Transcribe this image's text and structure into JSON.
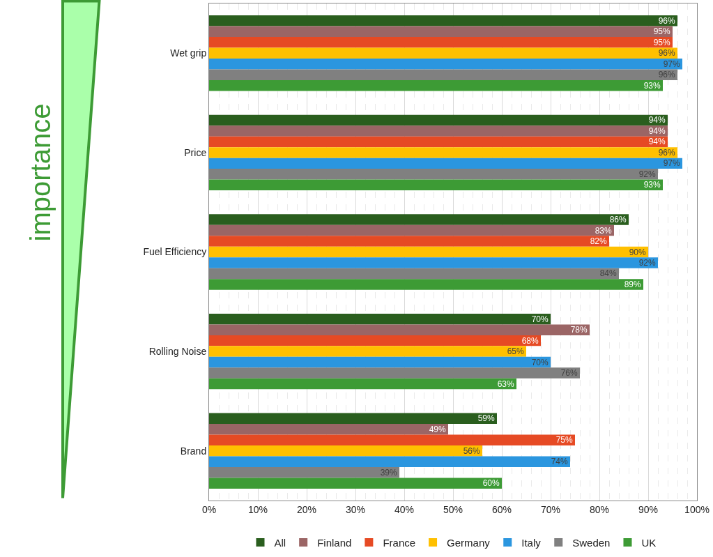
{
  "chart_data": {
    "type": "bar",
    "orientation": "horizontal",
    "categories": [
      "Wet grip",
      "Price",
      "Fuel Efficiency",
      "Rolling Noise",
      "Brand"
    ],
    "series": [
      {
        "name": "All",
        "color": "#2a5e1e",
        "values": [
          96,
          94,
          86,
          70,
          59
        ],
        "value_labels": [
          "96%",
          "94%",
          "86%",
          "70%",
          "59%"
        ]
      },
      {
        "name": "Finland",
        "color": "#9b6565",
        "values": [
          95,
          94,
          83,
          78,
          49
        ],
        "value_labels": [
          "95%",
          "94%",
          "83%",
          "78%",
          "49%"
        ]
      },
      {
        "name": "France",
        "color": "#e64a24",
        "values": [
          95,
          94,
          82,
          68,
          75
        ],
        "value_labels": [
          "95%",
          "94%",
          "82%",
          "68%",
          "75%"
        ]
      },
      {
        "name": "Germany",
        "color": "#ffc000",
        "values": [
          96,
          96,
          90,
          65,
          56
        ],
        "value_labels": [
          "96%",
          "96%",
          "90%",
          "65%",
          "56%"
        ]
      },
      {
        "name": "Italy",
        "color": "#2b96df",
        "values": [
          97,
          97,
          92,
          70,
          74
        ],
        "value_labels": [
          "97%",
          "97%",
          "92%",
          "70%",
          "74%"
        ]
      },
      {
        "name": "Sweden",
        "color": "#808080",
        "values": [
          96,
          92,
          84,
          76,
          39
        ],
        "value_labels": [
          "96%",
          "92%",
          "84%",
          "76%",
          "39%"
        ]
      },
      {
        "name": "UK",
        "color": "#3d9b35",
        "values": [
          93,
          93,
          89,
          63,
          60
        ],
        "value_labels": [
          "93%",
          "93%",
          "89%",
          "63%",
          "60%"
        ]
      }
    ],
    "xlim": [
      0,
      100
    ],
    "xticks": [
      {
        "value": 0,
        "label": "0%"
      },
      {
        "value": 10,
        "label": "10%"
      },
      {
        "value": 20,
        "label": "20%"
      },
      {
        "value": 30,
        "label": "30%"
      },
      {
        "value": 40,
        "label": "40%"
      },
      {
        "value": 50,
        "label": "50%"
      },
      {
        "value": 60,
        "label": "60%"
      },
      {
        "value": 70,
        "label": "70%"
      },
      {
        "value": 80,
        "label": "80%"
      },
      {
        "value": 90,
        "label": "90%"
      },
      {
        "value": 100,
        "label": "100%"
      }
    ],
    "grid": "x",
    "legend": "bottom",
    "annotations": [
      "importance"
    ]
  }
}
